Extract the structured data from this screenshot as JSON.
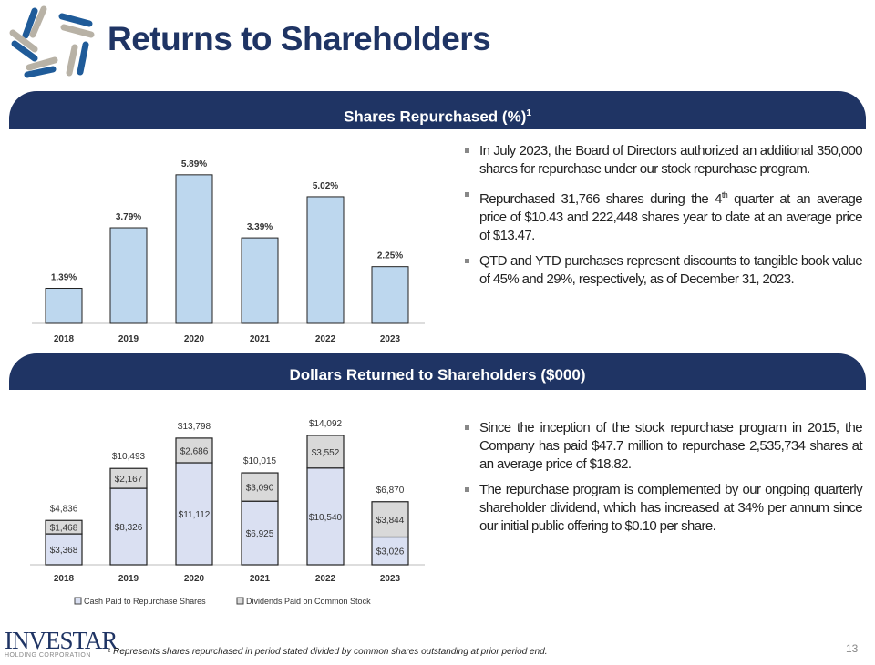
{
  "header": {
    "title": "Returns to Shareholders"
  },
  "section1": {
    "title": "Shares Repurchased (%)",
    "title_sup": "1",
    "bullets": [
      {
        "text": "In July 2023, the Board of Directors authorized an additional 350,000 shares for repurchase under our stock repurchase program."
      },
      {
        "pre": "Repurchased 31,766 shares during the 4",
        "sup": "th",
        "post": " quarter at an average price of $10.43 and 222,448 shares year to date at an average price of $13.47."
      },
      {
        "text": "QTD and YTD purchases represent discounts to tangible book value of 45% and 29%, respectively, as of December 31, 2023."
      }
    ]
  },
  "section2": {
    "title": "Dollars Returned to Shareholders ($000)",
    "bullets": [
      {
        "text": "Since the inception of the stock repurchase program in 2015, the Company has paid $47.7 million to repurchase 2,535,734 shares at an average price of $18.82."
      },
      {
        "text": "The repurchase program is complemented by our ongoing quarterly shareholder dividend, which has increased at 34% per annum since our initial public offering to $0.10 per share."
      }
    ]
  },
  "footer": {
    "footnote": "¹ Represents shares repurchased in period stated divided by common shares outstanding at prior period end.",
    "page_number": "13",
    "logo_text": "INVESTAR",
    "logo_subtext": "HOLDING CORPORATION"
  },
  "colors": {
    "navy": "#1f3464",
    "bar_blue": "#bdd7ee",
    "cash_fill": "#dae0f2",
    "dividend_fill": "#d9d9d9"
  },
  "chart_data": [
    {
      "type": "bar",
      "categories": [
        "2018",
        "2019",
        "2020",
        "2021",
        "2022",
        "2023"
      ],
      "values": [
        1.39,
        3.79,
        5.89,
        3.39,
        5.02,
        2.25
      ],
      "labels": [
        "1.39%",
        "3.79%",
        "5.89%",
        "3.39%",
        "5.02%",
        "2.25%"
      ],
      "grid": false
    },
    {
      "type": "bar",
      "stacked": true,
      "categories": [
        "2018",
        "2019",
        "2020",
        "2021",
        "2022",
        "2023"
      ],
      "series": [
        {
          "name": "Cash Paid to Repurchase Shares",
          "values": [
            3368,
            8326,
            11112,
            6925,
            10540,
            3026
          ],
          "labels": [
            "$3,368",
            "$8,326",
            "$11,112",
            "$6,925",
            "$10,540",
            "$3,026"
          ]
        },
        {
          "name": "Dividends Paid on Common Stock",
          "values": [
            1468,
            2167,
            2686,
            3090,
            3552,
            3844
          ],
          "labels": [
            "$1,468",
            "$2,167",
            "$2,686",
            "$3,090",
            "$3,552",
            "$3,844"
          ]
        }
      ],
      "totals": [
        "$4,836",
        "$10,493",
        "$13,798",
        "$10,015",
        "$14,092",
        "$6,870"
      ],
      "legend": "bottom",
      "grid": false
    }
  ]
}
